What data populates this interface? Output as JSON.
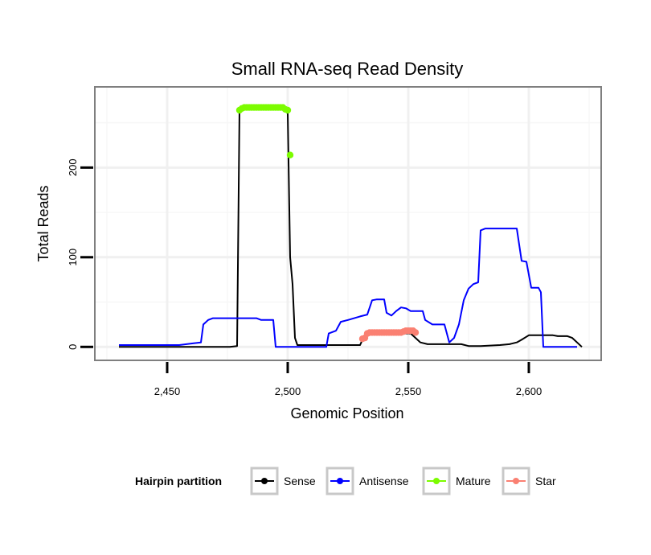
{
  "chart_data": {
    "type": "line",
    "title": "Small RNA-seq Read Density",
    "xlabel": "Genomic Position",
    "ylabel": "Total Reads",
    "xlim": [
      2420,
      2630
    ],
    "ylim": [
      -15,
      290
    ],
    "x_ticks": [
      2450,
      2500,
      2550,
      2600
    ],
    "x_tick_labels": [
      "2,450",
      "2,500",
      "2,550",
      "2,600"
    ],
    "y_ticks": [
      0,
      100,
      200
    ],
    "y_tick_labels": [
      "0",
      "100",
      "200"
    ],
    "grid": true,
    "legend": {
      "title": "Hairpin partition",
      "placement": "bottom",
      "entries": [
        "Sense",
        "Antisense",
        "Mature",
        "Star"
      ]
    },
    "series": [
      {
        "name": "Sense",
        "color": "#000000",
        "style": "line",
        "points": [
          [
            2430,
            0
          ],
          [
            2476,
            0
          ],
          [
            2479,
            1
          ],
          [
            2480,
            265
          ],
          [
            2499,
            265
          ],
          [
            2500,
            260
          ],
          [
            2501,
            100
          ],
          [
            2502,
            70
          ],
          [
            2503,
            10
          ],
          [
            2504,
            2
          ],
          [
            2530,
            2
          ],
          [
            2531,
            8
          ],
          [
            2533,
            15
          ],
          [
            2551,
            15
          ],
          [
            2553,
            10
          ],
          [
            2555,
            5
          ],
          [
            2558,
            3
          ],
          [
            2572,
            3
          ],
          [
            2575,
            1
          ],
          [
            2580,
            1
          ],
          [
            2588,
            2
          ],
          [
            2592,
            3
          ],
          [
            2595,
            5
          ],
          [
            2597,
            8
          ],
          [
            2600,
            13
          ],
          [
            2610,
            13
          ],
          [
            2612,
            12
          ],
          [
            2616,
            12
          ],
          [
            2618,
            10
          ],
          [
            2620,
            5
          ],
          [
            2622,
            0
          ]
        ]
      },
      {
        "name": "Antisense",
        "color": "#0000ff",
        "style": "line",
        "points": [
          [
            2430,
            2
          ],
          [
            2455,
            2
          ],
          [
            2461,
            4
          ],
          [
            2464,
            5
          ],
          [
            2465,
            25
          ],
          [
            2467,
            30
          ],
          [
            2469,
            32
          ],
          [
            2487,
            32
          ],
          [
            2489,
            30
          ],
          [
            2494,
            30
          ],
          [
            2495,
            0
          ],
          [
            2516,
            0
          ],
          [
            2517,
            15
          ],
          [
            2520,
            18
          ],
          [
            2522,
            28
          ],
          [
            2525,
            30
          ],
          [
            2530,
            34
          ],
          [
            2533,
            36
          ],
          [
            2535,
            52
          ],
          [
            2537,
            53
          ],
          [
            2540,
            53
          ],
          [
            2541,
            38
          ],
          [
            2543,
            35
          ],
          [
            2545,
            40
          ],
          [
            2547,
            44
          ],
          [
            2549,
            43
          ],
          [
            2551,
            40
          ],
          [
            2556,
            40
          ],
          [
            2557,
            30
          ],
          [
            2560,
            25
          ],
          [
            2565,
            25
          ],
          [
            2567,
            5
          ],
          [
            2569,
            10
          ],
          [
            2571,
            25
          ],
          [
            2573,
            52
          ],
          [
            2575,
            65
          ],
          [
            2577,
            70
          ],
          [
            2579,
            72
          ],
          [
            2580,
            130
          ],
          [
            2582,
            132
          ],
          [
            2595,
            132
          ],
          [
            2597,
            96
          ],
          [
            2599,
            95
          ],
          [
            2601,
            66
          ],
          [
            2604,
            66
          ],
          [
            2605,
            61
          ],
          [
            2606,
            0
          ],
          [
            2620,
            0
          ]
        ]
      },
      {
        "name": "Mature",
        "color": "#7cfc00",
        "style": "points",
        "points": [
          [
            2480,
            264
          ],
          [
            2481,
            266
          ],
          [
            2482,
            267
          ],
          [
            2483,
            267
          ],
          [
            2484,
            267
          ],
          [
            2485,
            267
          ],
          [
            2486,
            267
          ],
          [
            2487,
            267
          ],
          [
            2488,
            267
          ],
          [
            2489,
            267
          ],
          [
            2490,
            267
          ],
          [
            2491,
            267
          ],
          [
            2492,
            267
          ],
          [
            2493,
            267
          ],
          [
            2494,
            267
          ],
          [
            2495,
            267
          ],
          [
            2496,
            267
          ],
          [
            2497,
            267
          ],
          [
            2498,
            267
          ],
          [
            2499,
            265
          ],
          [
            2500,
            264
          ],
          [
            2501,
            214
          ]
        ]
      },
      {
        "name": "Star",
        "color": "#fa8072",
        "style": "points",
        "points": [
          [
            2531,
            9
          ],
          [
            2532,
            10
          ],
          [
            2533,
            15
          ],
          [
            2534,
            16
          ],
          [
            2535,
            16
          ],
          [
            2536,
            16
          ],
          [
            2537,
            16
          ],
          [
            2538,
            16
          ],
          [
            2539,
            16
          ],
          [
            2540,
            16
          ],
          [
            2541,
            16
          ],
          [
            2542,
            16
          ],
          [
            2543,
            16
          ],
          [
            2544,
            16
          ],
          [
            2545,
            16
          ],
          [
            2546,
            16
          ],
          [
            2547,
            16
          ],
          [
            2548,
            17
          ],
          [
            2549,
            18
          ],
          [
            2550,
            18
          ],
          [
            2551,
            18
          ],
          [
            2552,
            18
          ],
          [
            2553,
            16
          ]
        ]
      }
    ]
  }
}
